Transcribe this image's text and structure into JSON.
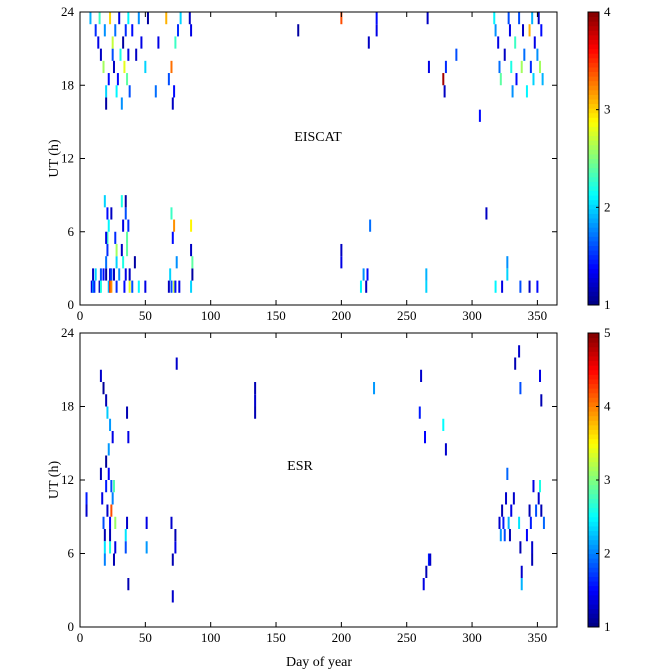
{
  "figure": {
    "xlabel": "Day of year"
  },
  "chart_data": [
    {
      "type": "heatmap",
      "title": "EISCAT",
      "xlabel": "",
      "ylabel": "UT (h)",
      "xlim": [
        0,
        365
      ],
      "ylim": [
        0,
        24
      ],
      "xticks": [
        0,
        50,
        100,
        150,
        200,
        250,
        300,
        350
      ],
      "yticks": [
        0,
        6,
        12,
        18,
        24
      ],
      "colorbar": {
        "min": 1,
        "max": 4,
        "ticks": [
          1,
          2,
          3,
          4
        ]
      },
      "cell_hours": 1,
      "cells": [
        [
          9,
          1,
          1.3
        ],
        [
          10,
          1,
          1.8
        ],
        [
          10,
          2,
          1.2
        ],
        [
          11,
          1,
          1.5
        ],
        [
          12,
          2,
          2.0
        ],
        [
          15,
          1,
          1.2
        ],
        [
          16,
          1,
          2.2
        ],
        [
          16,
          2,
          1.6
        ],
        [
          18,
          2,
          1.4
        ],
        [
          20,
          2,
          1.1
        ],
        [
          20,
          3,
          1.7
        ],
        [
          21,
          4,
          1.5
        ],
        [
          21,
          5,
          2.3
        ],
        [
          22,
          1,
          1.9
        ],
        [
          23,
          1,
          3.5
        ],
        [
          23,
          2,
          1.3
        ],
        [
          24,
          1,
          3.2
        ],
        [
          24,
          2,
          1.6
        ],
        [
          26,
          2,
          1.2
        ],
        [
          28,
          1,
          1.5
        ],
        [
          28,
          3,
          2.0
        ],
        [
          30,
          2,
          1.8
        ],
        [
          32,
          4,
          1.2
        ],
        [
          33,
          3,
          2.2
        ],
        [
          34,
          1,
          1.4
        ],
        [
          35,
          2,
          1.3
        ],
        [
          36,
          4,
          2.4
        ],
        [
          38,
          1,
          2.8
        ],
        [
          38,
          2,
          1.2
        ],
        [
          40,
          1,
          1.6
        ],
        [
          42,
          3,
          1.1
        ],
        [
          45,
          1,
          2.1
        ],
        [
          50,
          1,
          1.3
        ],
        [
          68,
          1,
          1.2
        ],
        [
          69,
          2,
          2.0
        ],
        [
          70,
          1,
          1.6
        ],
        [
          72,
          1,
          2.7
        ],
        [
          73,
          1,
          1.4
        ],
        [
          74,
          3,
          1.8
        ],
        [
          76,
          1,
          1.3
        ],
        [
          85,
          1,
          2.0
        ],
        [
          86,
          2,
          1.1
        ],
        [
          86,
          3,
          2.4
        ],
        [
          20,
          5,
          1.3
        ],
        [
          22,
          6,
          2.1
        ],
        [
          24,
          7,
          1.2
        ],
        [
          27,
          5,
          1.5
        ],
        [
          28,
          4,
          2.6
        ],
        [
          19,
          8,
          2.0
        ],
        [
          21,
          7,
          1.4
        ],
        [
          32,
          8,
          2.2
        ],
        [
          33,
          6,
          1.3
        ],
        [
          35,
          7,
          1.6
        ],
        [
          36,
          5,
          2.4
        ],
        [
          35,
          8,
          1.1
        ],
        [
          37,
          6,
          1.5
        ],
        [
          70,
          7,
          2.3
        ],
        [
          72,
          6,
          3.2
        ],
        [
          71,
          5,
          1.4
        ],
        [
          85,
          4,
          1.2
        ],
        [
          85,
          6,
          2.9
        ],
        [
          222,
          6,
          1.7
        ],
        [
          200,
          3,
          1.3
        ],
        [
          200,
          4,
          1.2
        ],
        [
          215,
          1,
          2.1
        ],
        [
          217,
          2,
          1.8
        ],
        [
          219,
          1,
          1.2
        ],
        [
          220,
          2,
          1.4
        ],
        [
          265,
          1,
          2.0
        ],
        [
          265,
          2,
          1.9
        ],
        [
          311,
          7,
          1.2
        ],
        [
          318,
          1,
          2.1
        ],
        [
          323,
          1,
          1.3
        ],
        [
          327,
          2,
          2.0
        ],
        [
          327,
          3,
          1.8
        ],
        [
          337,
          1,
          1.6
        ],
        [
          344,
          1,
          1.2
        ],
        [
          350,
          1,
          1.4
        ],
        [
          8,
          23,
          1.9
        ],
        [
          12,
          22,
          1.5
        ],
        [
          14,
          21,
          1.3
        ],
        [
          15,
          23,
          2.3
        ],
        [
          16,
          20,
          1.2
        ],
        [
          18,
          19,
          2.6
        ],
        [
          19,
          22,
          1.8
        ],
        [
          20,
          16,
          1.1
        ],
        [
          20,
          17,
          2.0
        ],
        [
          22,
          18,
          1.4
        ],
        [
          23,
          23,
          3.0
        ],
        [
          25,
          20,
          1.6
        ],
        [
          25,
          21,
          2.7
        ],
        [
          26,
          19,
          1.2
        ],
        [
          27,
          22,
          1.7
        ],
        [
          28,
          17,
          2.1
        ],
        [
          29,
          18,
          1.4
        ],
        [
          30,
          23,
          1.3
        ],
        [
          31,
          20,
          2.2
        ],
        [
          32,
          16,
          1.8
        ],
        [
          33,
          21,
          1.1
        ],
        [
          34,
          19,
          2.8
        ],
        [
          35,
          22,
          1.5
        ],
        [
          36,
          18,
          2.4
        ],
        [
          37,
          20,
          1.3
        ],
        [
          37,
          23,
          2.1
        ],
        [
          38,
          17,
          1.6
        ],
        [
          40,
          22,
          1.4
        ],
        [
          43,
          20,
          1.2
        ],
        [
          45,
          23,
          1.8
        ],
        [
          47,
          21,
          1.3
        ],
        [
          50,
          19,
          2.0
        ],
        [
          52,
          23,
          1.1
        ],
        [
          58,
          17,
          1.7
        ],
        [
          60,
          21,
          1.3
        ],
        [
          66,
          23,
          3.1
        ],
        [
          68,
          18,
          1.6
        ],
        [
          70,
          19,
          3.3
        ],
        [
          71,
          16,
          1.2
        ],
        [
          72,
          17,
          1.4
        ],
        [
          73,
          21,
          2.3
        ],
        [
          75,
          22,
          1.5
        ],
        [
          77,
          23,
          2.0
        ],
        [
          84,
          23,
          1.2
        ],
        [
          85,
          22,
          1.3
        ],
        [
          167,
          22,
          1.1
        ],
        [
          200,
          23,
          3.4
        ],
        [
          221,
          21,
          1.2
        ],
        [
          227,
          23,
          1.4
        ],
        [
          227,
          22,
          1.3
        ],
        [
          266,
          23,
          1.2
        ],
        [
          267,
          19,
          1.3
        ],
        [
          278,
          18,
          3.9
        ],
        [
          279,
          17,
          1.2
        ],
        [
          280,
          19,
          1.5
        ],
        [
          288,
          20,
          1.6
        ],
        [
          306,
          15,
          1.4
        ],
        [
          317,
          23,
          2.1
        ],
        [
          318,
          22,
          1.8
        ],
        [
          320,
          21,
          1.3
        ],
        [
          321,
          19,
          1.7
        ],
        [
          322,
          18,
          2.4
        ],
        [
          325,
          20,
          1.2
        ],
        [
          328,
          23,
          1.6
        ],
        [
          329,
          22,
          1.3
        ],
        [
          330,
          19,
          2.2
        ],
        [
          331,
          17,
          1.8
        ],
        [
          333,
          21,
          2.3
        ],
        [
          334,
          18,
          1.4
        ],
        [
          336,
          23,
          1.6
        ],
        [
          338,
          19,
          2.6
        ],
        [
          339,
          22,
          1.2
        ],
        [
          340,
          20,
          1.7
        ],
        [
          342,
          17,
          2.1
        ],
        [
          344,
          22,
          3.1
        ],
        [
          345,
          19,
          1.5
        ],
        [
          346,
          23,
          1.9
        ],
        [
          347,
          18,
          2.0
        ],
        [
          348,
          21,
          1.3
        ],
        [
          350,
          20,
          1.8
        ],
        [
          351,
          23,
          1.2
        ],
        [
          352,
          19,
          2.6
        ],
        [
          353,
          22,
          1.4
        ],
        [
          354,
          18,
          1.9
        ]
      ]
    },
    {
      "type": "heatmap",
      "title": "ESR",
      "xlabel": "Day of year",
      "ylabel": "UT (h)",
      "xlim": [
        0,
        365
      ],
      "ylim": [
        0,
        24
      ],
      "xticks": [
        0,
        50,
        100,
        150,
        200,
        250,
        300,
        350
      ],
      "yticks": [
        0,
        6,
        12,
        18,
        24
      ],
      "colorbar": {
        "min": 1,
        "max": 5,
        "ticks": [
          1,
          2,
          3,
          4,
          5
        ]
      },
      "cell_hours": 1,
      "cells": [
        [
          5,
          9,
          1.3
        ],
        [
          5,
          10,
          1.6
        ],
        [
          16,
          12,
          1.2
        ],
        [
          17,
          10,
          1.4
        ],
        [
          18,
          8,
          1.8
        ],
        [
          19,
          7,
          1.2
        ],
        [
          19,
          6,
          2.4
        ],
        [
          19,
          5,
          2.0
        ],
        [
          20,
          13,
          1.1
        ],
        [
          20,
          11,
          1.6
        ],
        [
          21,
          9,
          1.3
        ],
        [
          22,
          12,
          1.5
        ],
        [
          22,
          14,
          2.1
        ],
        [
          23,
          6,
          2.6
        ],
        [
          23,
          7,
          1.2
        ],
        [
          23,
          8,
          1.5
        ],
        [
          24,
          9,
          4.2
        ],
        [
          24,
          11,
          1.8
        ],
        [
          25,
          10,
          2.0
        ],
        [
          25,
          15,
          1.4
        ],
        [
          26,
          11,
          2.8
        ],
        [
          26,
          5,
          1.2
        ],
        [
          27,
          6,
          1.4
        ],
        [
          27,
          8,
          3.1
        ],
        [
          35,
          7,
          2.4
        ],
        [
          35,
          6,
          1.8
        ],
        [
          36,
          8,
          1.3
        ],
        [
          37,
          3,
          1.2
        ],
        [
          51,
          6,
          2.1
        ],
        [
          51,
          8,
          1.4
        ],
        [
          70,
          8,
          1.3
        ],
        [
          71,
          5,
          1.2
        ],
        [
          73,
          6,
          1.4
        ],
        [
          73,
          7,
          1.2
        ],
        [
          71,
          2,
          1.3
        ],
        [
          16,
          20,
          1.3
        ],
        [
          18,
          19,
          1.1
        ],
        [
          20,
          18,
          1.2
        ],
        [
          21,
          17,
          2.3
        ],
        [
          23,
          16,
          2.1
        ],
        [
          36,
          17,
          1.2
        ],
        [
          37,
          15,
          1.4
        ],
        [
          74,
          21,
          1.3
        ],
        [
          134,
          17,
          1.2
        ],
        [
          134,
          18,
          1.3
        ],
        [
          134,
          19,
          1.2
        ],
        [
          225,
          19,
          2.1
        ],
        [
          260,
          17,
          1.6
        ],
        [
          261,
          20,
          1.3
        ],
        [
          264,
          15,
          1.5
        ],
        [
          278,
          16,
          2.5
        ],
        [
          280,
          14,
          1.3
        ],
        [
          263,
          3,
          1.4
        ],
        [
          265,
          4,
          1.2
        ],
        [
          267,
          5,
          1.6
        ],
        [
          268,
          5,
          1.3
        ],
        [
          321,
          8,
          1.3
        ],
        [
          322,
          7,
          2.1
        ],
        [
          323,
          9,
          1.2
        ],
        [
          324,
          8,
          1.6
        ],
        [
          325,
          7,
          1.8
        ],
        [
          326,
          10,
          1.3
        ],
        [
          327,
          12,
          1.9
        ],
        [
          328,
          8,
          2.2
        ],
        [
          329,
          7,
          1.2
        ],
        [
          330,
          9,
          1.4
        ],
        [
          332,
          10,
          1.3
        ],
        [
          336,
          8,
          2.4
        ],
        [
          337,
          6,
          1.2
        ],
        [
          338,
          4,
          1.3
        ],
        [
          338,
          3,
          2.2
        ],
        [
          342,
          7,
          1.5
        ],
        [
          344,
          9,
          1.2
        ],
        [
          345,
          8,
          1.6
        ],
        [
          346,
          6,
          1.3
        ],
        [
          346,
          5,
          1.2
        ],
        [
          347,
          11,
          1.4
        ],
        [
          349,
          9,
          1.8
        ],
        [
          351,
          10,
          1.3
        ],
        [
          352,
          11,
          2.6
        ],
        [
          353,
          9,
          1.2
        ],
        [
          355,
          8,
          1.9
        ],
        [
          333,
          21,
          1.2
        ],
        [
          336,
          22,
          1.3
        ],
        [
          337,
          19,
          1.8
        ],
        [
          352,
          20,
          1.4
        ],
        [
          353,
          18,
          1.2
        ]
      ]
    }
  ]
}
